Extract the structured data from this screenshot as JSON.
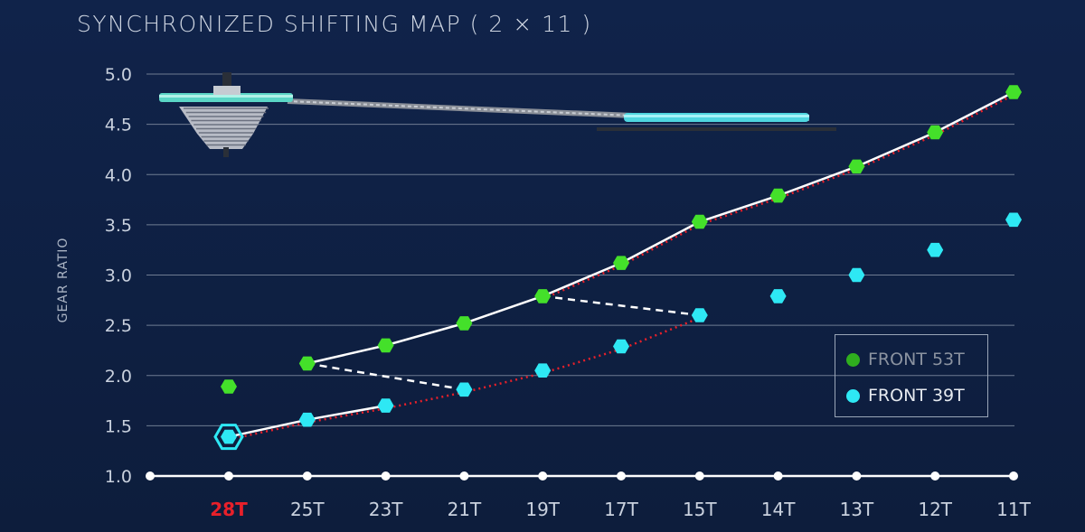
{
  "title": "SYNCHRONIZED SHIFTING MAP ( 2 × 11 )",
  "colors": {
    "green": "#44e02a",
    "cyan": "#2ee8f4",
    "red": "#e8202a",
    "white": "#ffffff",
    "grid": "#6f7c92"
  },
  "chart_data": {
    "type": "scatter",
    "title": "SYNCHRONIZED SHIFTING MAP ( 2 × 11 )",
    "ylabel": "GEAR RATIO",
    "xlabel": "",
    "ylim": [
      1.0,
      5.0
    ],
    "yticks": [
      "1.0",
      "1.5",
      "2.0",
      "2.5",
      "3.0",
      "3.5",
      "4.0",
      "4.5",
      "5.0"
    ],
    "categories": [
      "28T",
      "25T",
      "23T",
      "21T",
      "19T",
      "17T",
      "15T",
      "14T",
      "13T",
      "12T",
      "11T"
    ],
    "highlight_category": "28T",
    "series": [
      {
        "name": "FRONT 53T",
        "color": "#44e02a",
        "values": [
          1.89,
          2.12,
          2.3,
          2.52,
          2.79,
          3.12,
          3.53,
          3.79,
          4.08,
          4.42,
          4.82
        ]
      },
      {
        "name": "FRONT 39T",
        "color": "#2ee8f4",
        "values": [
          1.39,
          1.56,
          1.7,
          1.86,
          2.05,
          2.29,
          2.6,
          2.79,
          3.0,
          3.25,
          3.55
        ]
      }
    ],
    "shift_path_solid": [
      {
        "series": "FRONT 39T",
        "from": "28T",
        "to": "25T"
      },
      {
        "series": "FRONT 39T",
        "from": "25T",
        "to": "23T"
      },
      {
        "series": "FRONT 53T",
        "from": "25T",
        "to": "23T"
      },
      {
        "series": "FRONT 53T",
        "from": "23T",
        "to": "21T"
      },
      {
        "series": "FRONT 53T",
        "from": "21T",
        "to": "19T"
      },
      {
        "series": "FRONT 53T",
        "from": "19T",
        "to": "17T"
      },
      {
        "series": "FRONT 53T",
        "from": "17T",
        "to": "15T"
      },
      {
        "series": "FRONT 53T",
        "from": "15T",
        "to": "14T"
      },
      {
        "series": "FRONT 53T",
        "from": "14T",
        "to": "13T"
      },
      {
        "series": "FRONT 53T",
        "from": "13T",
        "to": "12T"
      },
      {
        "series": "FRONT 53T",
        "from": "12T",
        "to": "11T"
      }
    ],
    "shift_path_dashed": [
      {
        "from_series": "FRONT 53T",
        "from": "25T",
        "to_series": "FRONT 39T",
        "to": "21T"
      },
      {
        "from_series": "FRONT 53T",
        "from": "19T",
        "to_series": "FRONT 39T",
        "to": "15T"
      }
    ],
    "trend_dotted": [
      {
        "series": "FRONT 39T",
        "from": "28T",
        "to": "15T"
      },
      {
        "series": "FRONT 53T",
        "from": "19T",
        "to": "11T"
      }
    ],
    "current_gear": {
      "series": "FRONT 39T",
      "category": "28T"
    },
    "legend_position": "bottom-right",
    "grid": true
  }
}
